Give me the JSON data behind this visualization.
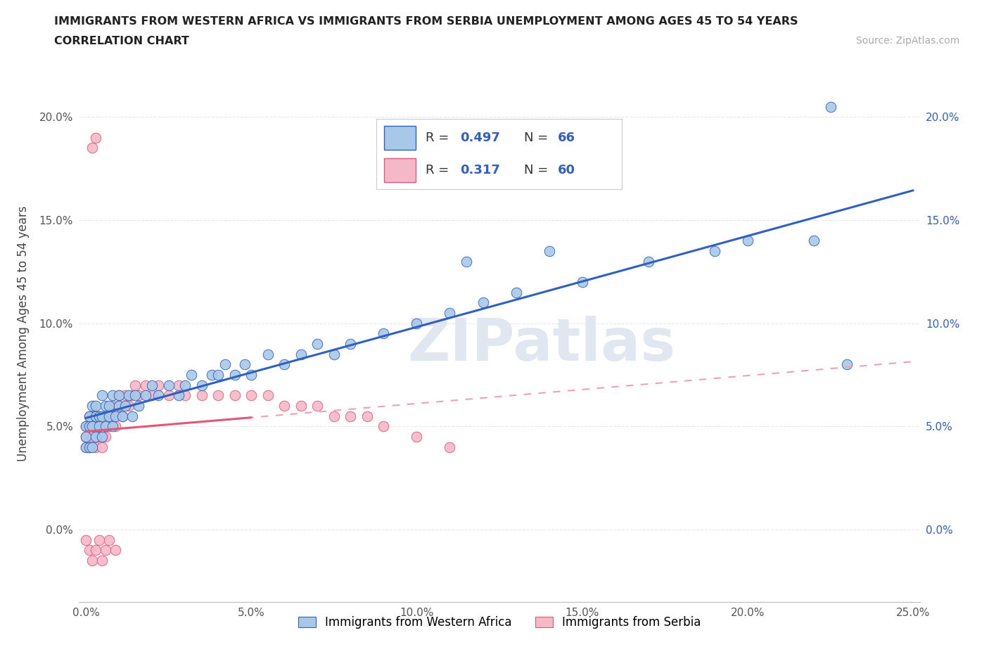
{
  "title_line1": "IMMIGRANTS FROM WESTERN AFRICA VS IMMIGRANTS FROM SERBIA UNEMPLOYMENT AMONG AGES 45 TO 54 YEARS",
  "title_line2": "CORRELATION CHART",
  "source_text": "Source: ZipAtlas.com",
  "ylabel": "Unemployment Among Ages 45 to 54 years",
  "xlim": [
    -0.002,
    0.252
  ],
  "ylim": [
    -0.035,
    0.225
  ],
  "xticks": [
    0.0,
    0.05,
    0.1,
    0.15,
    0.2,
    0.25
  ],
  "yticks": [
    0.0,
    0.05,
    0.1,
    0.15,
    0.2
  ],
  "xticklabels": [
    "0.0%",
    "5.0%",
    "10.0%",
    "15.0%",
    "20.0%",
    "25.0%"
  ],
  "yticklabels": [
    "0.0%",
    "5.0%",
    "10.0%",
    "15.0%",
    "20.0%"
  ],
  "western_africa_color": "#a8c8e8",
  "serbia_color": "#f4b8c8",
  "trend_blue_color": "#3060c0",
  "trend_pink_color": "#e05878",
  "trend_pink_dash_color": "#f0a0b4",
  "watermark_color": "#dde5f0",
  "background_color": "#ffffff",
  "grid_color": "#e0e0e0",
  "wa_R": 0.497,
  "wa_N": 66,
  "sb_R": 0.317,
  "sb_N": 60,
  "legend_labels": [
    "Immigrants from Western Africa",
    "Immigrants from Serbia"
  ],
  "wa_x": [
    0.0,
    0.0,
    0.0,
    0.001,
    0.001,
    0.001,
    0.002,
    0.002,
    0.002,
    0.003,
    0.003,
    0.003,
    0.004,
    0.004,
    0.005,
    0.005,
    0.005,
    0.006,
    0.006,
    0.007,
    0.007,
    0.008,
    0.008,
    0.009,
    0.01,
    0.01,
    0.011,
    0.012,
    0.013,
    0.014,
    0.015,
    0.016,
    0.018,
    0.02,
    0.022,
    0.025,
    0.028,
    0.03,
    0.032,
    0.035,
    0.038,
    0.04,
    0.042,
    0.045,
    0.048,
    0.05,
    0.055,
    0.06,
    0.065,
    0.07,
    0.075,
    0.08,
    0.09,
    0.1,
    0.11,
    0.12,
    0.13,
    0.15,
    0.17,
    0.19,
    0.2,
    0.22,
    0.225,
    0.23,
    0.115,
    0.14
  ],
  "wa_y": [
    0.04,
    0.045,
    0.05,
    0.04,
    0.05,
    0.055,
    0.04,
    0.05,
    0.06,
    0.045,
    0.055,
    0.06,
    0.05,
    0.055,
    0.045,
    0.055,
    0.065,
    0.05,
    0.06,
    0.055,
    0.06,
    0.05,
    0.065,
    0.055,
    0.06,
    0.065,
    0.055,
    0.06,
    0.065,
    0.055,
    0.065,
    0.06,
    0.065,
    0.07,
    0.065,
    0.07,
    0.065,
    0.07,
    0.075,
    0.07,
    0.075,
    0.075,
    0.08,
    0.075,
    0.08,
    0.075,
    0.085,
    0.08,
    0.085,
    0.09,
    0.085,
    0.09,
    0.095,
    0.1,
    0.105,
    0.11,
    0.115,
    0.12,
    0.13,
    0.135,
    0.14,
    0.14,
    0.205,
    0.08,
    0.13,
    0.135
  ],
  "sb_x": [
    0.0,
    0.0,
    0.0,
    0.0,
    0.001,
    0.001,
    0.001,
    0.001,
    0.002,
    0.002,
    0.002,
    0.003,
    0.003,
    0.003,
    0.003,
    0.004,
    0.004,
    0.004,
    0.005,
    0.005,
    0.005,
    0.005,
    0.006,
    0.006,
    0.007,
    0.007,
    0.008,
    0.008,
    0.009,
    0.009,
    0.01,
    0.01,
    0.011,
    0.012,
    0.013,
    0.014,
    0.015,
    0.016,
    0.018,
    0.02,
    0.022,
    0.025,
    0.028,
    0.03,
    0.035,
    0.04,
    0.045,
    0.05,
    0.055,
    0.06,
    0.065,
    0.07,
    0.075,
    0.08,
    0.085,
    0.09,
    0.1,
    0.11,
    0.002,
    0.003
  ],
  "sb_y": [
    0.04,
    0.045,
    0.05,
    -0.005,
    0.04,
    0.05,
    0.055,
    -0.01,
    0.045,
    0.055,
    -0.015,
    0.04,
    0.05,
    0.055,
    -0.01,
    0.045,
    0.055,
    -0.005,
    0.04,
    0.045,
    0.055,
    -0.015,
    0.045,
    -0.01,
    0.05,
    -0.005,
    0.055,
    0.06,
    0.05,
    -0.01,
    0.06,
    0.065,
    0.055,
    0.065,
    0.06,
    0.065,
    0.07,
    0.065,
    0.07,
    0.065,
    0.07,
    0.065,
    0.07,
    0.065,
    0.065,
    0.065,
    0.065,
    0.065,
    0.065,
    0.06,
    0.06,
    0.06,
    0.055,
    0.055,
    0.055,
    0.05,
    0.045,
    0.04,
    0.185,
    0.19
  ]
}
